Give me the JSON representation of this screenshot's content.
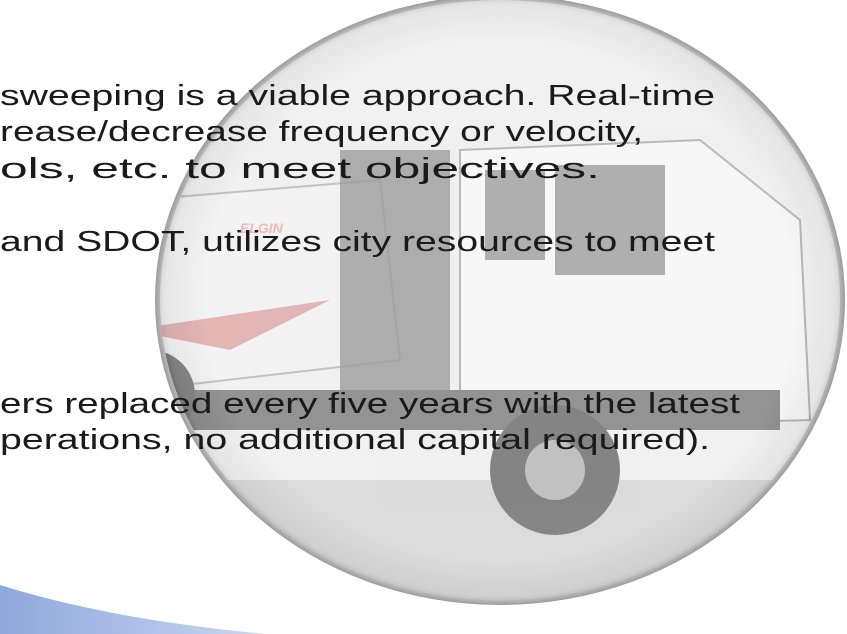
{
  "paragraphs": [
    {
      "lines": [
        "sweeping is a viable approach.  Real-time",
        "rease/decrease frequency or velocity,",
        "ols, etc. to meet objectives."
      ]
    },
    {
      "lines": [
        "and SDOT, utilizes city resources to meet"
      ]
    },
    {
      "lines": [
        "ers replaced every five years with the latest",
        "perations, no additional capital required)."
      ]
    }
  ],
  "image": {
    "logo": "ELGIN"
  }
}
